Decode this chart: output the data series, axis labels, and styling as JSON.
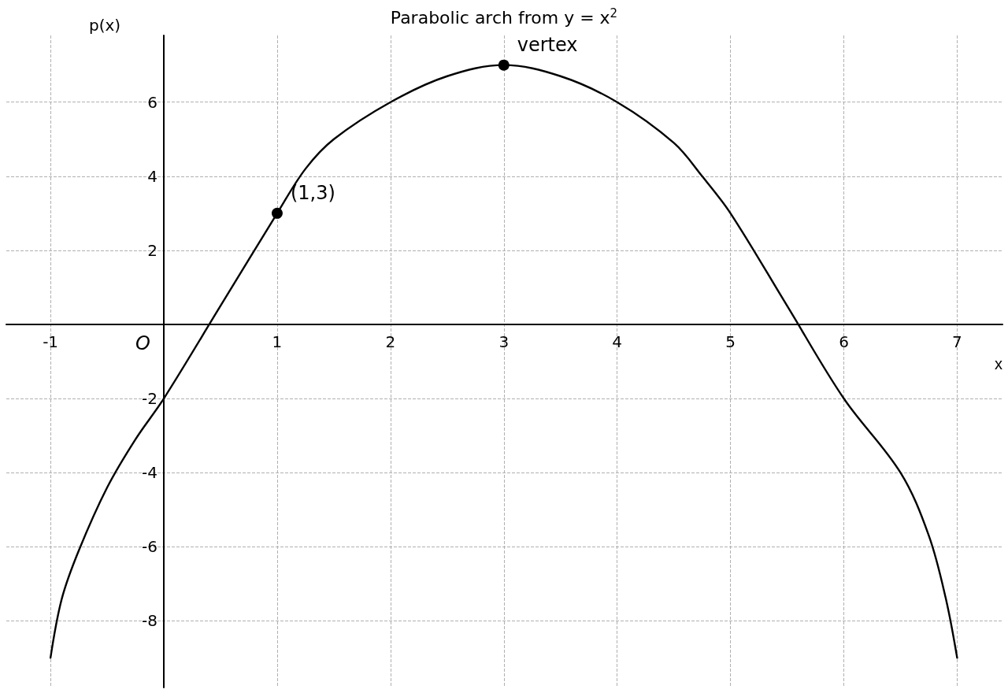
{
  "chart_data": {
    "type": "line",
    "title": "Parabolic arch from y = x$^{2}$",
    "xlabel": "x",
    "ylabel": "p(x)",
    "xlim": [
      -1.39,
      7.4
    ],
    "xticks": [
      -1,
      1,
      2,
      3,
      4,
      5,
      6,
      7
    ],
    "ylim": [
      -9.8,
      7.8
    ],
    "yticks": [
      -8,
      -6,
      -4,
      -2,
      2,
      4,
      6
    ],
    "grid": true,
    "series": [
      {
        "type": "line",
        "color": "#000000",
        "marker": "none",
        "line_style": "solid",
        "x": [
          -1,
          -0.9,
          -0.75,
          -0.5,
          -0.25,
          0,
          0.5,
          1,
          1.25,
          1.5,
          2,
          2.5,
          3,
          3.5,
          4,
          4.5,
          4.75,
          5,
          5.5,
          6,
          6.5,
          6.75,
          6.9,
          7
        ],
        "values": [
          -9,
          -7.4,
          -6.1,
          -4.4,
          -3.1,
          -2,
          0.5,
          3,
          4.2,
          5,
          6,
          6.7,
          7,
          6.7,
          6,
          4.9,
          4,
          3,
          0.5,
          -2,
          -4,
          -5.7,
          -7.4,
          -9
        ]
      },
      {
        "type": "scatter",
        "color": "#000000",
        "marker": "circle",
        "x": [
          1,
          3
        ],
        "values": [
          3,
          7
        ]
      }
    ],
    "annotations": [
      {
        "text": "(1,3)",
        "x": 1,
        "y": 3
      },
      {
        "text": "vertex",
        "x": 3,
        "y": 7
      },
      "O"
    ]
  }
}
